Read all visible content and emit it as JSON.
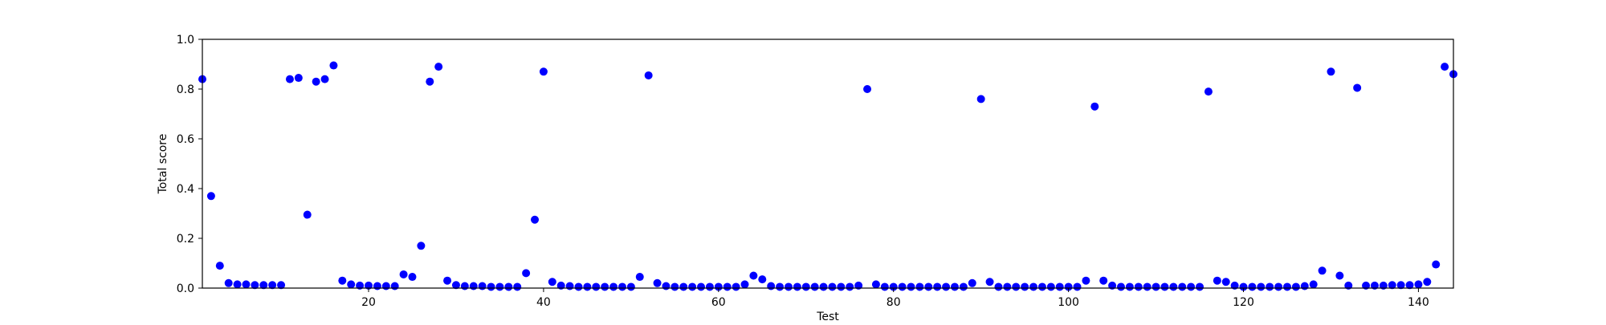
{
  "chart_data": {
    "type": "scatter",
    "title": "",
    "xlabel": "Test",
    "ylabel": "Total score",
    "xlim": [
      1,
      144
    ],
    "ylim": [
      0.0,
      1.0
    ],
    "xticks": [
      20,
      40,
      60,
      80,
      100,
      120,
      140
    ],
    "yticks": [
      0.0,
      0.2,
      0.4,
      0.6,
      0.8,
      1.0
    ],
    "xtick_labels": [
      "20",
      "40",
      "60",
      "80",
      "100",
      "120",
      "140"
    ],
    "ytick_labels": [
      "0.0",
      "0.2",
      "0.4",
      "0.6",
      "0.8",
      "1.0"
    ],
    "grid": false,
    "marker_color": "#0000ff",
    "series": [
      {
        "x": [
          1,
          2,
          3,
          4,
          5,
          6,
          7,
          8,
          9,
          10,
          11,
          12,
          13,
          14,
          15,
          16,
          17,
          18,
          19,
          20,
          21,
          22,
          23,
          24,
          25,
          26,
          27,
          28,
          29,
          30,
          31,
          32,
          33,
          34,
          35,
          36,
          37,
          38,
          39,
          40,
          41,
          42,
          43,
          44,
          45,
          46,
          47,
          48,
          49,
          50,
          51,
          52,
          53,
          54,
          55,
          56,
          57,
          58,
          59,
          60,
          61,
          62,
          63,
          64,
          65,
          66,
          67,
          68,
          69,
          70,
          71,
          72,
          73,
          74,
          75,
          76,
          77,
          78,
          79,
          80,
          81,
          82,
          83,
          84,
          85,
          86,
          87,
          88,
          89,
          90,
          91,
          92,
          93,
          94,
          95,
          96,
          97,
          98,
          99,
          100,
          101,
          102,
          103,
          104,
          105,
          106,
          107,
          108,
          109,
          110,
          111,
          112,
          113,
          114,
          115,
          116,
          117,
          118,
          119,
          120,
          121,
          122,
          123,
          124,
          125,
          126,
          127,
          128,
          129,
          130,
          131,
          132,
          133,
          134,
          135,
          136,
          137,
          138,
          139,
          140,
          141,
          142,
          143,
          144
        ],
        "y": [
          0.84,
          0.37,
          0.09,
          0.02,
          0.015,
          0.015,
          0.012,
          0.012,
          0.012,
          0.012,
          0.84,
          0.845,
          0.295,
          0.83,
          0.84,
          0.895,
          0.03,
          0.015,
          0.01,
          0.01,
          0.008,
          0.008,
          0.008,
          0.055,
          0.045,
          0.17,
          0.83,
          0.89,
          0.03,
          0.012,
          0.008,
          0.008,
          0.008,
          0.005,
          0.005,
          0.005,
          0.005,
          0.06,
          0.275,
          0.87,
          0.025,
          0.01,
          0.008,
          0.005,
          0.005,
          0.005,
          0.005,
          0.005,
          0.005,
          0.005,
          0.045,
          0.855,
          0.02,
          0.008,
          0.005,
          0.005,
          0.005,
          0.005,
          0.005,
          0.005,
          0.005,
          0.005,
          0.015,
          0.05,
          0.035,
          0.008,
          0.005,
          0.005,
          0.005,
          0.005,
          0.005,
          0.005,
          0.005,
          0.005,
          0.005,
          0.01,
          0.8,
          0.015,
          0.005,
          0.005,
          0.005,
          0.005,
          0.005,
          0.005,
          0.005,
          0.005,
          0.005,
          0.005,
          0.02,
          0.76,
          0.025,
          0.005,
          0.005,
          0.005,
          0.005,
          0.005,
          0.005,
          0.005,
          0.005,
          0.005,
          0.005,
          0.03,
          0.73,
          0.03,
          0.01,
          0.005,
          0.005,
          0.005,
          0.005,
          0.005,
          0.005,
          0.005,
          0.005,
          0.005,
          0.005,
          0.79,
          0.03,
          0.025,
          0.01,
          0.005,
          0.005,
          0.005,
          0.005,
          0.005,
          0.005,
          0.005,
          0.008,
          0.015,
          0.07,
          0.87,
          0.05,
          0.01,
          0.805,
          0.01,
          0.01,
          0.01,
          0.012,
          0.012,
          0.012,
          0.015,
          0.025,
          0.095,
          0.89,
          0.86
        ]
      }
    ]
  }
}
